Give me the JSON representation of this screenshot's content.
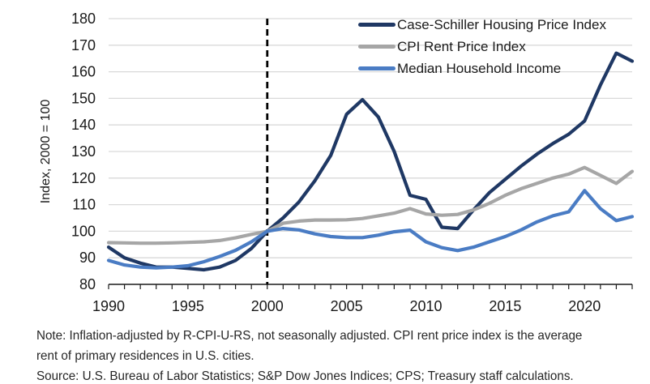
{
  "figure": {
    "y_axis_title": "Index, 2000 = 100",
    "notes": {
      "line1": "Note: Inflation-adjusted by R-CPI-U-RS, not seasonally adjusted. CPI rent price index is the average",
      "line2": "rent of primary residences in U.S. cities.",
      "line3": "Source: U.S. Bureau of Labor Statistics; S&P Dow Jones Indices; CPS; Treasury staff calculations."
    }
  },
  "chart_data": {
    "type": "line",
    "x": [
      1990,
      1991,
      1992,
      1993,
      1994,
      1995,
      1996,
      1997,
      1998,
      1999,
      2000,
      2001,
      2002,
      2003,
      2004,
      2005,
      2006,
      2007,
      2008,
      2009,
      2010,
      2011,
      2012,
      2013,
      2014,
      2015,
      2016,
      2017,
      2018,
      2019,
      2020,
      2021,
      2022,
      2023
    ],
    "series": [
      {
        "name": "Case-Schiller Housing Price Index",
        "color": "#1f3864",
        "values": [
          94,
          90,
          88,
          86.5,
          86.5,
          86,
          85.5,
          86.5,
          89,
          93.5,
          100,
          105,
          111,
          119,
          128.5,
          144,
          149.5,
          143,
          130,
          113.5,
          112,
          101.5,
          101,
          108,
          114.5,
          119.5,
          124.5,
          129,
          133,
          136.5,
          141.5,
          155,
          167,
          164
        ]
      },
      {
        "name": "CPI Rent Price Index",
        "color": "#a6a6a6",
        "values": [
          95.7,
          95.6,
          95.5,
          95.5,
          95.6,
          95.8,
          96,
          96.5,
          97.5,
          98.8,
          100,
          103,
          103.8,
          104.2,
          104.2,
          104.3,
          104.8,
          105.8,
          106.8,
          108.5,
          106.5,
          106,
          106.3,
          108,
          110.5,
          113.5,
          116,
          118,
          120,
          121.5,
          124,
          121,
          118,
          122.5
        ]
      },
      {
        "name": "Median Household Income",
        "color": "#4a7cc4",
        "values": [
          89,
          87.3,
          86.5,
          86.2,
          86.5,
          87,
          88.5,
          90.5,
          92.8,
          96,
          100,
          101,
          100.5,
          99,
          98,
          97.6,
          97.6,
          98.5,
          99.8,
          100.4,
          96,
          93.8,
          92.7,
          94,
          96,
          98,
          100.5,
          103.5,
          105.8,
          107.3,
          115.3,
          108.5,
          104,
          105.5
        ]
      }
    ],
    "ylabel": "Index, 2000 = 100",
    "ylim": [
      80,
      180
    ],
    "y_ticks": [
      80,
      90,
      100,
      110,
      120,
      130,
      140,
      150,
      160,
      170,
      180
    ],
    "xlim": [
      1990,
      2023
    ],
    "x_tick_labels": [
      1990,
      1995,
      2000,
      2005,
      2010,
      2015,
      2020
    ],
    "grid": true,
    "legend_position": "top-right",
    "annotations": [
      {
        "type": "vline",
        "x": 2000,
        "style": "dashed",
        "color": "#000000"
      }
    ],
    "axis_color": "#1a1a1a",
    "gridline_color": "#d9d9d9"
  }
}
